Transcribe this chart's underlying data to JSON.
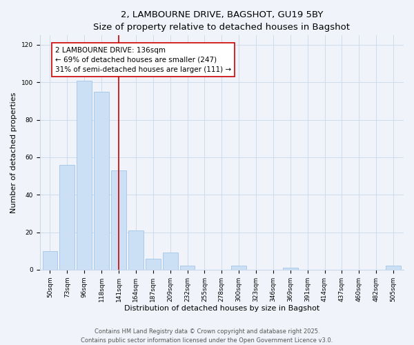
{
  "title": "2, LAMBOURNE DRIVE, BAGSHOT, GU19 5BY",
  "subtitle": "Size of property relative to detached houses in Bagshot",
  "xlabel": "Distribution of detached houses by size in Bagshot",
  "ylabel": "Number of detached properties",
  "categories": [
    "50sqm",
    "73sqm",
    "96sqm",
    "118sqm",
    "141sqm",
    "164sqm",
    "187sqm",
    "209sqm",
    "232sqm",
    "255sqm",
    "278sqm",
    "300sqm",
    "323sqm",
    "346sqm",
    "369sqm",
    "391sqm",
    "414sqm",
    "437sqm",
    "460sqm",
    "482sqm",
    "505sqm"
  ],
  "values": [
    10,
    56,
    101,
    95,
    53,
    21,
    6,
    9,
    2,
    0,
    0,
    2,
    0,
    0,
    1,
    0,
    0,
    0,
    0,
    0,
    2
  ],
  "bar_color": "#cce0f5",
  "bar_edge_color": "#a0c4e8",
  "vline_x": 4,
  "vline_color": "#cc0000",
  "annotation_line1": "2 LAMBOURNE DRIVE: 136sqm",
  "annotation_line2": "← 69% of detached houses are smaller (247)",
  "annotation_line3": "31% of semi-detached houses are larger (111) →",
  "annotation_box_color": "#ffffff",
  "annotation_box_edge_color": "#cc0000",
  "ylim": [
    0,
    125
  ],
  "yticks": [
    0,
    20,
    40,
    60,
    80,
    100,
    120
  ],
  "footer_line1": "Contains HM Land Registry data © Crown copyright and database right 2025.",
  "footer_line2": "Contains public sector information licensed under the Open Government Licence v3.0.",
  "background_color": "#f0f4fa",
  "grid_color": "#c8d8ea",
  "title_fontsize": 9.5,
  "subtitle_fontsize": 8.5,
  "label_fontsize": 8,
  "tick_fontsize": 6.5,
  "annotation_fontsize": 7.5,
  "footer_fontsize": 6
}
